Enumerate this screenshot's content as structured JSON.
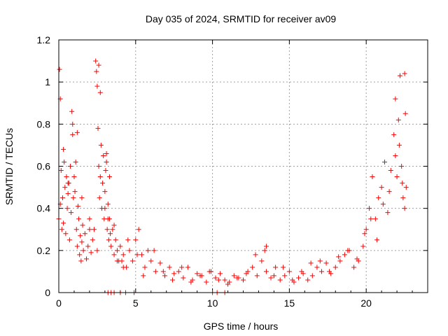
{
  "chart_data": {
    "type": "scatter",
    "title": "Day 035 of 2024, SRMTID for receiver av09",
    "xlabel": "GPS time / hours",
    "ylabel": "SRMTID / TECUs",
    "xlim": [
      0,
      24
    ],
    "ylim": [
      0,
      1.2
    ],
    "x_ticks": [
      0,
      5,
      10,
      15,
      20
    ],
    "x_tick_labels": [
      "0",
      "5",
      "10",
      "15",
      "20"
    ],
    "y_ticks": [
      0,
      0.2,
      0.4,
      0.6,
      0.8,
      1,
      1.2
    ],
    "y_tick_labels": [
      "0",
      "0.2",
      "0.4",
      "0.6",
      "0.8",
      "1",
      "1.2"
    ],
    "grid": true,
    "marker": "+",
    "series": [
      {
        "name": "SRMTID",
        "color": "#ff0000",
        "x": [
          0.0,
          0.05,
          0.1,
          0.15,
          0.2,
          0.25,
          0.3,
          0.35,
          0.4,
          0.45,
          0.5,
          0.55,
          0.6,
          0.65,
          0.7,
          0.75,
          0.8,
          0.85,
          0.9,
          0.95,
          1.0,
          1.05,
          1.1,
          1.15,
          1.2,
          1.25,
          1.3,
          1.35,
          1.4,
          1.45,
          1.5,
          1.55,
          1.6,
          1.7,
          1.8,
          1.9,
          2.0,
          2.1,
          2.2,
          2.3,
          2.4,
          2.45,
          2.5,
          2.55,
          2.6,
          2.65,
          2.7,
          2.75,
          2.8,
          2.85,
          2.9,
          2.95,
          3.0,
          3.05,
          3.1,
          3.15,
          3.2,
          3.25,
          3.3,
          3.35,
          3.4,
          3.5,
          3.6,
          3.7,
          3.8,
          3.9,
          4.0,
          4.2,
          4.4,
          4.6,
          4.8,
          5.0,
          5.2,
          5.4,
          5.6,
          5.8,
          6.0,
          6.3,
          6.6,
          6.9,
          7.2,
          7.5,
          7.8,
          8.1,
          8.4,
          8.7,
          9.0,
          9.3,
          9.6,
          9.9,
          10.2,
          10.5,
          10.8,
          11.1,
          11.4,
          11.7,
          12.0,
          12.3,
          12.6,
          12.9,
          13.2,
          13.5,
          13.8,
          14.1,
          14.4,
          14.7,
          15.0,
          15.3,
          15.6,
          15.9,
          16.2,
          16.5,
          16.8,
          17.1,
          17.4,
          17.7,
          18.0,
          18.3,
          18.6,
          18.9,
          19.2,
          19.5,
          19.8,
          20.0,
          20.2,
          20.4,
          20.6,
          20.8,
          21.0,
          21.2,
          21.4,
          21.6,
          21.8,
          21.9,
          22.0,
          22.1,
          22.2,
          22.3,
          22.4,
          22.5,
          22.55,
          22.6,
          0.1,
          0.3,
          0.6,
          0.9,
          1.2,
          1.5,
          2.0,
          2.5,
          2.6,
          2.7,
          3.0,
          3.3,
          3.6,
          4.1,
          4.5,
          5.1,
          5.5,
          6.2,
          6.8,
          7.4,
          8.0,
          8.6,
          9.2,
          9.8,
          10.4,
          11.0,
          11.6,
          12.2,
          12.8,
          13.4,
          14.0,
          14.6,
          15.2,
          15.8,
          16.4,
          17.0,
          17.6,
          18.2,
          18.8,
          19.4,
          19.9,
          20.3,
          20.7,
          21.1,
          21.5,
          21.9,
          22.15,
          22.35,
          22.5,
          3.1,
          3.2,
          3.8,
          4.2,
          13.5,
          3.2,
          3.4,
          3.6,
          4.0,
          4.35,
          4.9,
          10.0,
          10.3,
          10.8
        ],
        "y": [
          0.35,
          1.06,
          0.42,
          0.58,
          0.3,
          0.45,
          0.33,
          0.62,
          0.5,
          0.28,
          0.55,
          0.4,
          0.47,
          0.52,
          0.25,
          0.6,
          0.38,
          0.86,
          0.75,
          0.45,
          0.55,
          0.48,
          0.62,
          0.3,
          0.22,
          0.41,
          0.35,
          0.18,
          0.27,
          0.15,
          0.24,
          0.32,
          0.2,
          0.28,
          0.16,
          0.22,
          0.35,
          0.19,
          0.25,
          0.3,
          1.1,
          1.05,
          0.98,
          0.78,
          0.6,
          0.45,
          0.55,
          0.7,
          0.4,
          0.52,
          0.65,
          0.35,
          0.48,
          0.58,
          0.62,
          0.3,
          0.42,
          0.25,
          0.35,
          0.28,
          0.22,
          0.3,
          0.18,
          0.25,
          0.2,
          0.15,
          0.22,
          0.18,
          0.12,
          0.2,
          0.15,
          0.25,
          0.3,
          0.18,
          0.12,
          0.2,
          0.15,
          0.1,
          0.14,
          0.08,
          0.12,
          0.09,
          0.1,
          0.07,
          0.12,
          0.06,
          0.09,
          0.08,
          0.05,
          0.1,
          0.07,
          0.09,
          0.06,
          0.05,
          0.08,
          0.07,
          0.06,
          0.1,
          0.12,
          0.08,
          0.15,
          0.1,
          0.07,
          0.12,
          0.06,
          0.08,
          0.1,
          0.05,
          0.07,
          0.09,
          0.06,
          0.08,
          0.12,
          0.1,
          0.14,
          0.09,
          0.12,
          0.15,
          0.18,
          0.2,
          0.12,
          0.15,
          0.22,
          0.3,
          0.4,
          0.55,
          0.35,
          0.45,
          0.5,
          0.62,
          0.38,
          0.58,
          0.75,
          0.92,
          0.55,
          0.82,
          1.03,
          0.6,
          0.45,
          1.04,
          0.85,
          0.5,
          0.92,
          0.68,
          0.52,
          0.8,
          0.76,
          0.45,
          0.3,
          0.2,
          1.08,
          0.95,
          0.4,
          0.55,
          0.32,
          0.15,
          0.25,
          0.18,
          0.08,
          0.2,
          0.1,
          0.06,
          0.12,
          0.05,
          0.08,
          0.1,
          0.06,
          0.04,
          0.07,
          0.09,
          0.18,
          0.2,
          0.08,
          0.12,
          0.06,
          0.1,
          0.14,
          0.15,
          0.1,
          0.17,
          0.2,
          0.16,
          0.28,
          0.35,
          0.25,
          0.42,
          0.48,
          0.65,
          0.7,
          0.52,
          0.4,
          0.66,
          0.35,
          0.15,
          0.12,
          0.22,
          0.0,
          0.0,
          0.0,
          0.0,
          0.0,
          0.0,
          0.0,
          0.0,
          0.0
        ]
      }
    ]
  }
}
